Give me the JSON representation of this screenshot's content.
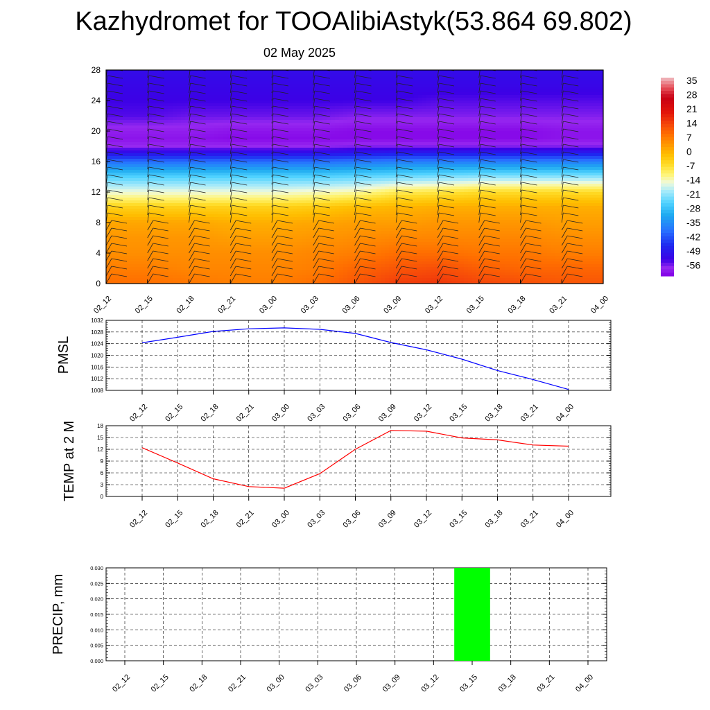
{
  "title": "Kazhydromet for TOOAlibiAstyk(53.864 69.802)",
  "date": "02 May 2025",
  "time_labels": [
    "02_12",
    "02_15",
    "02_18",
    "02_21",
    "03_00",
    "03_03",
    "03_06",
    "03_09",
    "03_12",
    "03_15",
    "03_18",
    "03_21",
    "04_00"
  ],
  "chart_data": [
    {
      "type": "heatmap",
      "title": "",
      "xlabel": "",
      "ylabel": "",
      "x": [
        "02_12",
        "02_15",
        "02_18",
        "02_21",
        "03_00",
        "03_03",
        "03_06",
        "03_09",
        "03_12",
        "03_15",
        "03_18",
        "03_21",
        "04_00"
      ],
      "y_ticks": [
        0,
        4,
        8,
        12,
        16,
        20,
        24,
        28
      ],
      "ylim": [
        0,
        28
      ],
      "colorbar": {
        "labels": [
          "35",
          "28",
          "21",
          "14",
          "7",
          "0",
          "-7",
          "-14",
          "-21",
          "-28",
          "-35",
          "-42",
          "-49",
          "-56"
        ],
        "range": [
          -60,
          38
        ]
      },
      "temperature_profile": {
        "levels": [
          0,
          2,
          4,
          6,
          8,
          10,
          11,
          12,
          14,
          16,
          17,
          18,
          19,
          20,
          22,
          24,
          26,
          28
        ],
        "values_by_time": [
          [
            10,
            8,
            6,
            5,
            3,
            -3,
            -9,
            -14,
            -24,
            -38,
            -48,
            -56,
            -58,
            -57,
            -53,
            -52,
            -51,
            -50
          ],
          [
            10,
            8,
            6,
            5,
            3,
            -3,
            -9,
            -14,
            -24,
            -38,
            -48,
            -56,
            -58,
            -57,
            -53,
            -52,
            -51,
            -50
          ],
          [
            9,
            7,
            6,
            5,
            3,
            -3,
            -9,
            -14,
            -24,
            -38,
            -48,
            -56,
            -58,
            -57,
            -54,
            -52,
            -51,
            -50
          ],
          [
            8,
            7,
            6,
            4,
            2,
            -3,
            -9,
            -14,
            -24,
            -38,
            -48,
            -56,
            -59,
            -58,
            -54,
            -52,
            -51,
            -50
          ],
          [
            8,
            7,
            6,
            4,
            2,
            -3,
            -9,
            -14,
            -24,
            -38,
            -48,
            -56,
            -59,
            -58,
            -54,
            -52,
            -51,
            -50
          ],
          [
            10,
            8,
            7,
            5,
            3,
            -2,
            -8,
            -13,
            -24,
            -38,
            -48,
            -56,
            -59,
            -58,
            -54,
            -52,
            -51,
            -50
          ],
          [
            13,
            11,
            8,
            6,
            4,
            0,
            -6,
            -12,
            -23,
            -37,
            -47,
            -55,
            -59,
            -59,
            -55,
            -52,
            -51,
            -50
          ],
          [
            16,
            13,
            10,
            7,
            4,
            1,
            -3,
            -8,
            -22,
            -36,
            -46,
            -55,
            -59,
            -59,
            -55,
            -52,
            -51,
            -50
          ],
          [
            17,
            14,
            10,
            7,
            5,
            2,
            -2,
            -7,
            -21,
            -36,
            -46,
            -55,
            -59,
            -59,
            -55,
            -53,
            -51,
            -50
          ],
          [
            15,
            12,
            9,
            7,
            5,
            2,
            -1,
            -5,
            -20,
            -36,
            -46,
            -55,
            -59,
            -59,
            -55,
            -53,
            -51,
            -50
          ],
          [
            14,
            11,
            9,
            7,
            5,
            2,
            -1,
            -5,
            -20,
            -36,
            -46,
            -55,
            -59,
            -59,
            -55,
            -53,
            -51,
            -50
          ],
          [
            13,
            11,
            8,
            6,
            4,
            2,
            -1,
            -5,
            -20,
            -36,
            -46,
            -55,
            -58,
            -58,
            -55,
            -53,
            -51,
            -50
          ],
          [
            13,
            11,
            8,
            6,
            4,
            2,
            -1,
            -5,
            -20,
            -36,
            -46,
            -55,
            -58,
            -58,
            -55,
            -53,
            -51,
            -50
          ]
        ]
      },
      "wind_barbs": "present at every time and level"
    },
    {
      "type": "line",
      "ylabel": "PMSL",
      "x": [
        "02_12",
        "02_15",
        "02_18",
        "02_21",
        "03_00",
        "03_03",
        "03_06",
        "03_09",
        "03_12",
        "03_15",
        "03_18",
        "03_21",
        "04_00"
      ],
      "series": [
        {
          "values": [
            1024.3,
            1026.2,
            1028.2,
            1029.1,
            1029.4,
            1028.9,
            1027.5,
            1024.4,
            1021.9,
            1018.7,
            1014.8,
            1011.7,
            1008.3
          ]
        }
      ],
      "yticks": [
        "1008",
        "1012",
        "1016",
        "1020",
        "1024",
        "1028",
        "1032"
      ],
      "ylim": [
        1008,
        1032
      ],
      "color": "#0000ff"
    },
    {
      "type": "line",
      "ylabel": "TEMP at 2 M",
      "x": [
        "02_12",
        "02_15",
        "02_18",
        "02_21",
        "03_00",
        "03_03",
        "03_06",
        "03_09",
        "03_12",
        "03_15",
        "03_18",
        "03_21",
        "04_00"
      ],
      "series": [
        {
          "values": [
            12.4,
            8.5,
            4.5,
            2.5,
            2.1,
            5.8,
            12.0,
            16.8,
            16.6,
            14.9,
            14.4,
            13.1,
            12.8
          ]
        }
      ],
      "yticks": [
        "0",
        "3",
        "6",
        "9",
        "12",
        "15",
        "18"
      ],
      "ylim": [
        0,
        18
      ],
      "color": "#ff0000"
    },
    {
      "type": "bar",
      "ylabel": "PRECIP, mm",
      "categories": [
        "02_12",
        "02_15",
        "02_18",
        "02_21",
        "03_00",
        "03_03",
        "03_06",
        "03_09",
        "03_12",
        "03_15",
        "03_18",
        "03_21",
        "04_00"
      ],
      "values": [
        0,
        0,
        0,
        0,
        0,
        0,
        0,
        0,
        0,
        0.03,
        0,
        0,
        0
      ],
      "yticks": [
        "0.000",
        "0.005",
        "0.010",
        "0.015",
        "0.020",
        "0.025",
        "0.030"
      ],
      "ylim": [
        0,
        0.03
      ],
      "color": "#00ff00"
    }
  ]
}
